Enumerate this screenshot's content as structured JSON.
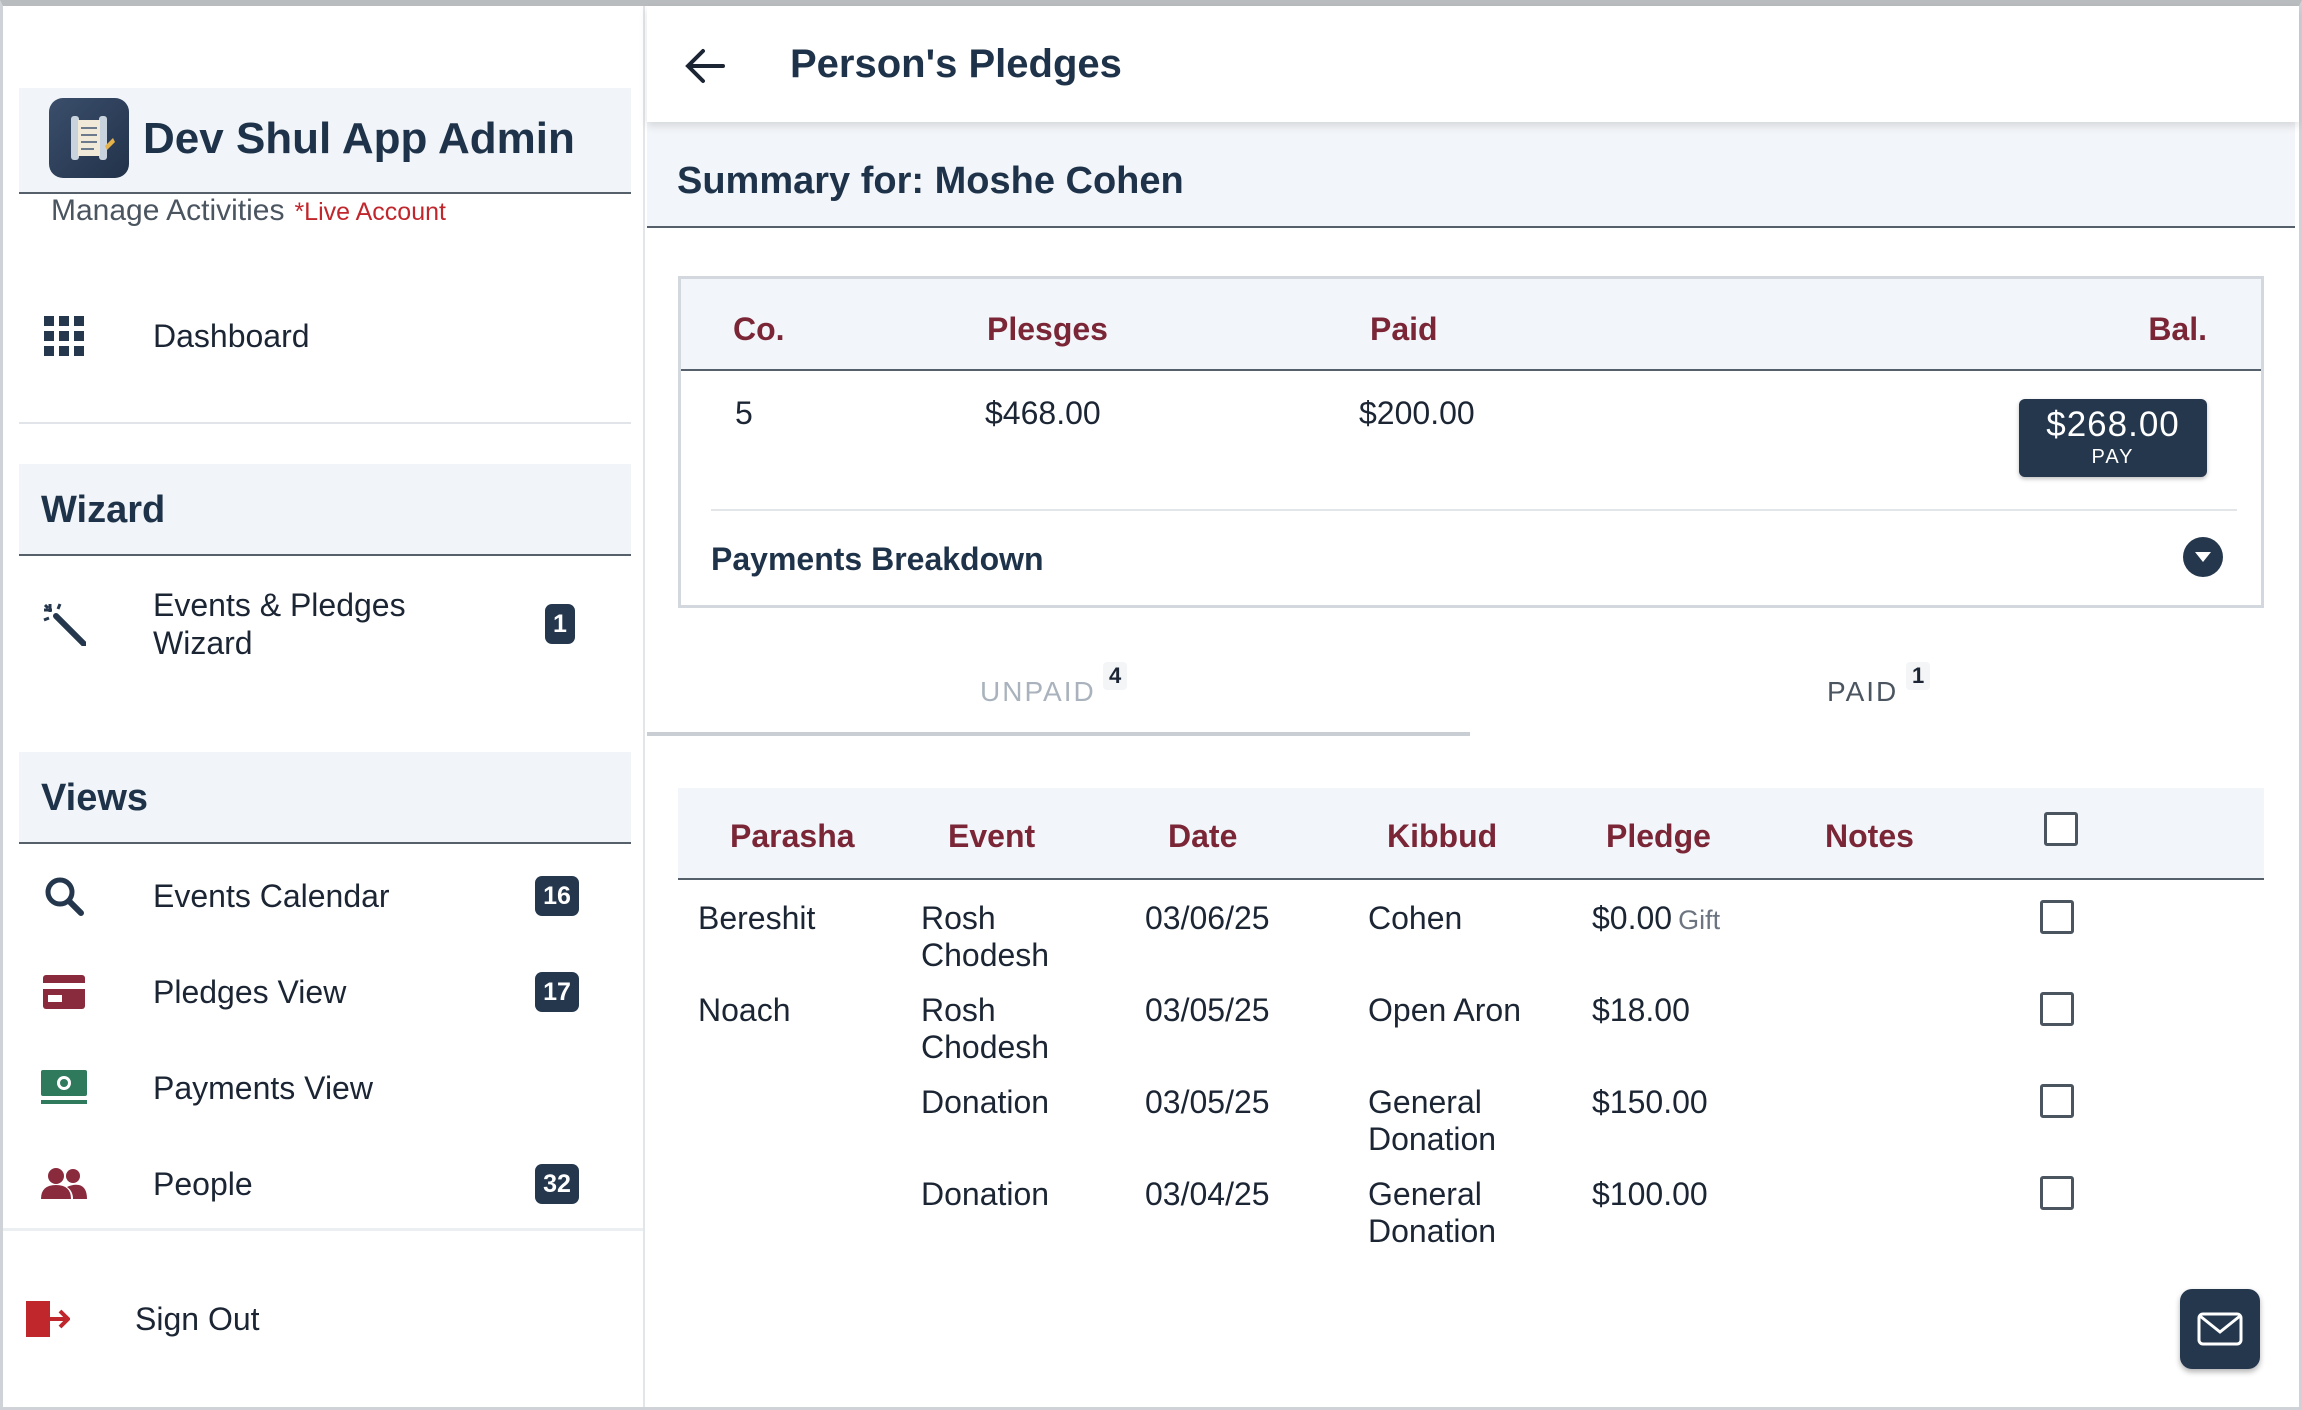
{
  "app": {
    "title": "Dev Shul App Admin",
    "subtitle": "Manage Activities",
    "live_tag": "*Live Account"
  },
  "sidebar": {
    "dashboard": {
      "label": "Dashboard",
      "icon": "grid-icon"
    },
    "sections": [
      {
        "title": "Wizard"
      },
      {
        "title": "Views"
      }
    ],
    "wizard_items": [
      {
        "label": "Events & Pledges Wizard",
        "badge": "1",
        "icon": "magic-wand-icon"
      }
    ],
    "view_items": [
      {
        "label": "Events Calendar",
        "badge": "16",
        "icon": "search-icon"
      },
      {
        "label": "Pledges View",
        "badge": "17",
        "icon": "card-icon"
      },
      {
        "label": "Payments View",
        "badge": "",
        "icon": "money-icon"
      },
      {
        "label": "People",
        "badge": "32",
        "icon": "people-icon"
      }
    ],
    "sign_out": {
      "label": "Sign Out",
      "icon": "sign-out-icon"
    }
  },
  "header": {
    "title": "Person's Pledges"
  },
  "summary": {
    "label": "Summary for: Moshe Cohen",
    "columns": [
      "Co.",
      "Plesges",
      "Paid",
      "Bal."
    ],
    "values": {
      "count": "5",
      "pledges": "$468.00",
      "paid": "$200.00",
      "balance": "$268.00"
    },
    "pay_label": "PAY",
    "breakdown_label": "Payments Breakdown"
  },
  "tabs": [
    {
      "label": "UNPAID",
      "count": "4",
      "active": true
    },
    {
      "label": "PAID",
      "count": "1",
      "active": false
    }
  ],
  "table": {
    "headers": [
      "Parasha",
      "Event",
      "Date",
      "Kibbud",
      "Pledge",
      "Notes"
    ],
    "rows": [
      {
        "parasha": "Bereshit",
        "event": "Rosh Chodesh",
        "date": "03/06/25",
        "kibbud": "Cohen",
        "pledge": "$0.00",
        "note_tag": "Gift",
        "notes": ""
      },
      {
        "parasha": "Noach",
        "event": "Rosh Chodesh",
        "date": "03/05/25",
        "kibbud": "Open Aron",
        "pledge": "$18.00",
        "note_tag": "",
        "notes": ""
      },
      {
        "parasha": "",
        "event": "Donation",
        "date": "03/05/25",
        "kibbud": "General Donation",
        "pledge": "$150.00",
        "note_tag": "",
        "notes": ""
      },
      {
        "parasha": "",
        "event": "Donation",
        "date": "03/04/25",
        "kibbud": "General Donation",
        "pledge": "$100.00",
        "note_tag": "",
        "notes": ""
      }
    ]
  },
  "colors": {
    "navy": "#24374d",
    "heading": "#1e3349",
    "maroon": "#7a2636",
    "live_red": "#c0272d",
    "panel_bg": "#f2f5f9"
  }
}
